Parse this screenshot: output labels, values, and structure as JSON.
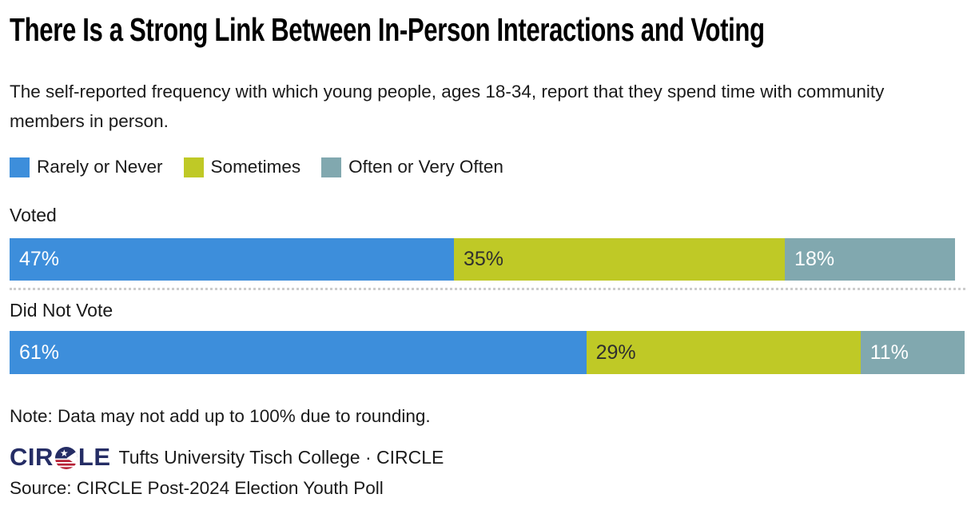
{
  "header": {
    "title": "There Is a Strong Link Between In-Person Interactions and Voting",
    "subtitle": "The self-reported frequency with which young people, ages 18-34, report that they spend time with community members in person."
  },
  "legend": [
    {
      "label": "Rarely or Never",
      "color": "#3d8edb"
    },
    {
      "label": "Sometimes",
      "color": "#bfc926"
    },
    {
      "label": "Often or Very Often",
      "color": "#81a8af"
    }
  ],
  "chart_data": {
    "type": "bar",
    "orientation": "horizontal",
    "stacked": true,
    "value_unit": "%",
    "xlim": [
      0,
      100
    ],
    "grid": false,
    "legend_position": "top",
    "categories": [
      "Voted",
      "Did Not Vote"
    ],
    "series": [
      {
        "name": "Rarely or Never",
        "color": "#3d8edb",
        "values": [
          47,
          61
        ]
      },
      {
        "name": "Sometimes",
        "color": "#bfc926",
        "values": [
          35,
          29
        ]
      },
      {
        "name": "Often or Very Often",
        "color": "#81a8af",
        "values": [
          18,
          11
        ]
      }
    ],
    "rows": [
      {
        "category": "Voted",
        "values": [
          47,
          35,
          18
        ],
        "labels": [
          "47%",
          "35%",
          "18%"
        ],
        "label_colors": [
          "#ffffff",
          "#2f2f2f",
          "#ffffff"
        ]
      },
      {
        "category": "Did Not Vote",
        "values": [
          61,
          29,
          11
        ],
        "labels": [
          "61%",
          "29%",
          "11%"
        ],
        "label_colors": [
          "#ffffff",
          "#2f2f2f",
          "#ffffff"
        ]
      }
    ]
  },
  "note": "Note: Data may not add up to 100% due to rounding.",
  "branding": {
    "logo_text_left": "CIR",
    "logo_text_right": "LE",
    "caption": "Tufts University Tisch College · CIRCLE",
    "colors": {
      "navy": "#252d65",
      "red": "#b51f34",
      "white": "#ffffff"
    }
  },
  "source": "Source: CIRCLE Post-2024 Election Youth Poll"
}
